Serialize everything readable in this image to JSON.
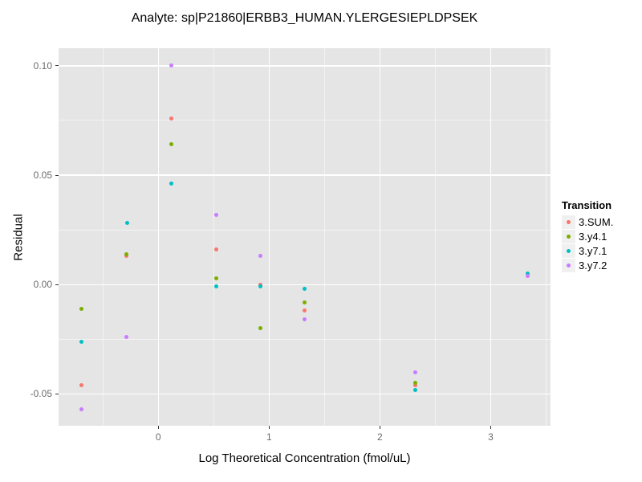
{
  "chart_data": {
    "type": "scatter",
    "title": "Analyte: sp|P21860|ERBB3_HUMAN.YLERGESIEPLDPSEK",
    "xlabel": "Log Theoretical Concentration (fmol/uL)",
    "ylabel": "Residual",
    "xlim": [
      -0.9,
      3.54
    ],
    "ylim": [
      -0.0645,
      0.108
    ],
    "grid": true,
    "panel_background": "#e5e5e5",
    "gridline_color": "#ffffff",
    "x_ticks": [
      0,
      1,
      2,
      3
    ],
    "x_tick_labels": [
      "0",
      "1",
      "2",
      "3"
    ],
    "y_ticks": [
      0.1,
      0.05,
      0.0,
      -0.05
    ],
    "y_tick_labels": [
      "0.10",
      "0.05",
      "0.00",
      "-0.05"
    ],
    "x_minor": [
      -0.5,
      0.5,
      1.5,
      2.5,
      3.5
    ],
    "y_minor": [
      0.075,
      0.025,
      -0.025
    ],
    "legend_title": "Transition",
    "legend_position": "right",
    "series": [
      {
        "name": "3.SUM.",
        "color": "#F8766D",
        "points": [
          [
            -0.69,
            -0.046
          ],
          [
            -0.29,
            0.013
          ],
          [
            0.12,
            0.076
          ],
          [
            0.52,
            0.016
          ],
          [
            0.92,
            0.0
          ],
          [
            1.32,
            -0.012
          ],
          [
            2.32,
            -0.046
          ]
        ]
      },
      {
        "name": "3.y4.1",
        "color": "#7CAE00",
        "points": [
          [
            -0.69,
            -0.011
          ],
          [
            -0.29,
            0.014
          ],
          [
            0.12,
            0.064
          ],
          [
            0.52,
            0.003
          ],
          [
            0.92,
            -0.02
          ],
          [
            1.32,
            -0.008
          ],
          [
            2.32,
            -0.045
          ]
        ]
      },
      {
        "name": "3.y7.1",
        "color": "#00BFC4",
        "points": [
          [
            -0.69,
            -0.026
          ],
          [
            -0.28,
            0.028
          ],
          [
            0.12,
            0.046
          ],
          [
            0.52,
            -0.001
          ],
          [
            0.92,
            -0.001
          ],
          [
            1.32,
            -0.002
          ],
          [
            2.32,
            -0.048
          ],
          [
            3.33,
            0.005
          ]
        ]
      },
      {
        "name": "3.y7.2",
        "color": "#C77CFF",
        "points": [
          [
            -0.69,
            -0.057
          ],
          [
            -0.29,
            -0.024
          ],
          [
            0.12,
            0.1
          ],
          [
            0.52,
            0.032
          ],
          [
            0.92,
            0.013
          ],
          [
            1.32,
            -0.016
          ],
          [
            2.32,
            -0.04
          ],
          [
            3.33,
            0.004
          ]
        ]
      }
    ]
  }
}
